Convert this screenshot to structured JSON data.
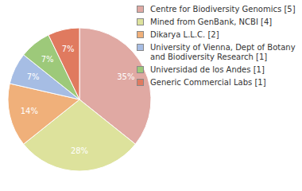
{
  "chart_data": {
    "type": "pie",
    "categories": [
      "Centre for Biodiversity Genomics [5]",
      "Mined from GenBank, NCBI [4]",
      "Dikarya L.L.C. [2]",
      "University of Vienna, Dept of Botany and Biodiversity Research [1]",
      "Universidad de los Andes [1]",
      "Generic Commercial Labs [1]"
    ],
    "values": [
      35,
      28,
      14,
      7,
      7,
      7
    ],
    "value_labels": [
      "35%",
      "28%",
      "14%",
      "7%",
      "7%",
      "7%"
    ],
    "colors": [
      "#e0a9a3",
      "#dde29c",
      "#f0b07a",
      "#a6bde4",
      "#9dc97a",
      "#e07a5f"
    ],
    "data_labels": true,
    "legend": "right"
  }
}
